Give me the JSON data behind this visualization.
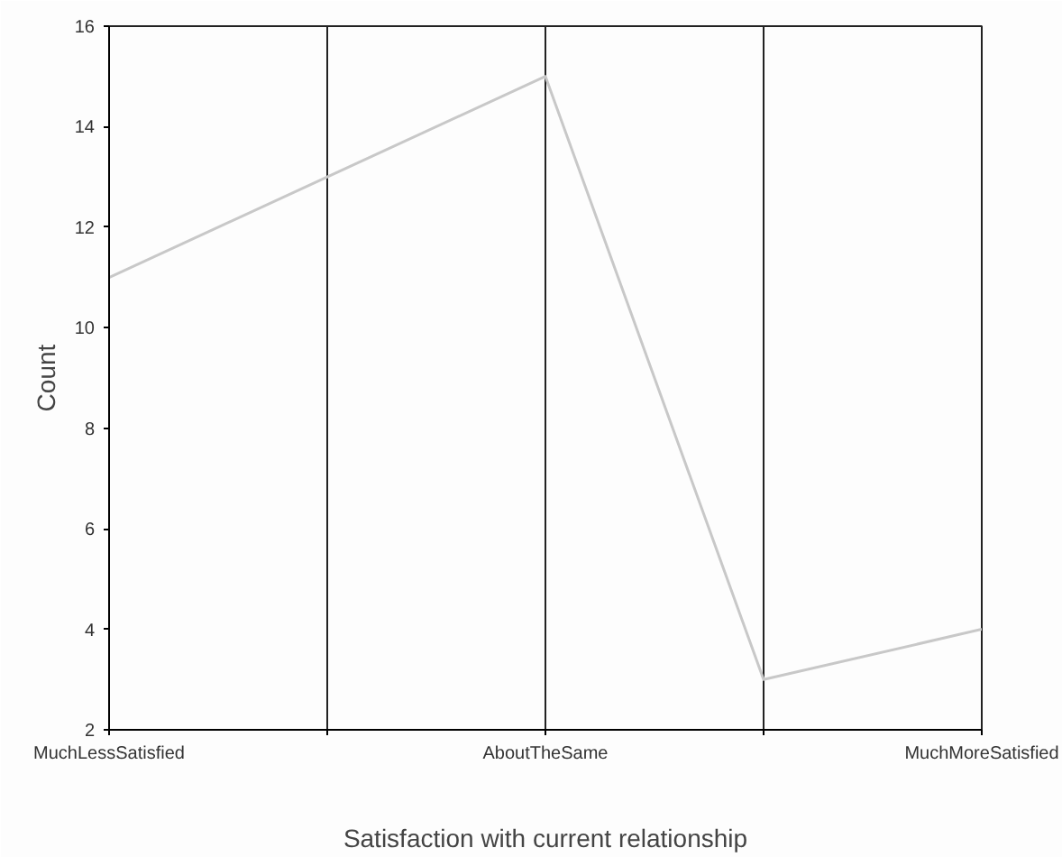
{
  "chart_data": {
    "type": "line",
    "xlabel": "Satisfaction with current relationship",
    "ylabel": "Count",
    "categories": [
      "MuchLessSatisfied",
      null,
      "AboutTheSame",
      null,
      "MuchMoreSatisfied"
    ],
    "series": [
      {
        "color": "#c8c8c8",
        "values": [
          11,
          13,
          15,
          3,
          4
        ]
      }
    ],
    "ylim": [
      2,
      16
    ],
    "yticks": [
      2,
      4,
      6,
      8,
      10,
      12,
      14,
      16
    ],
    "grid": "x",
    "marker": "none",
    "line_style": "solid"
  }
}
